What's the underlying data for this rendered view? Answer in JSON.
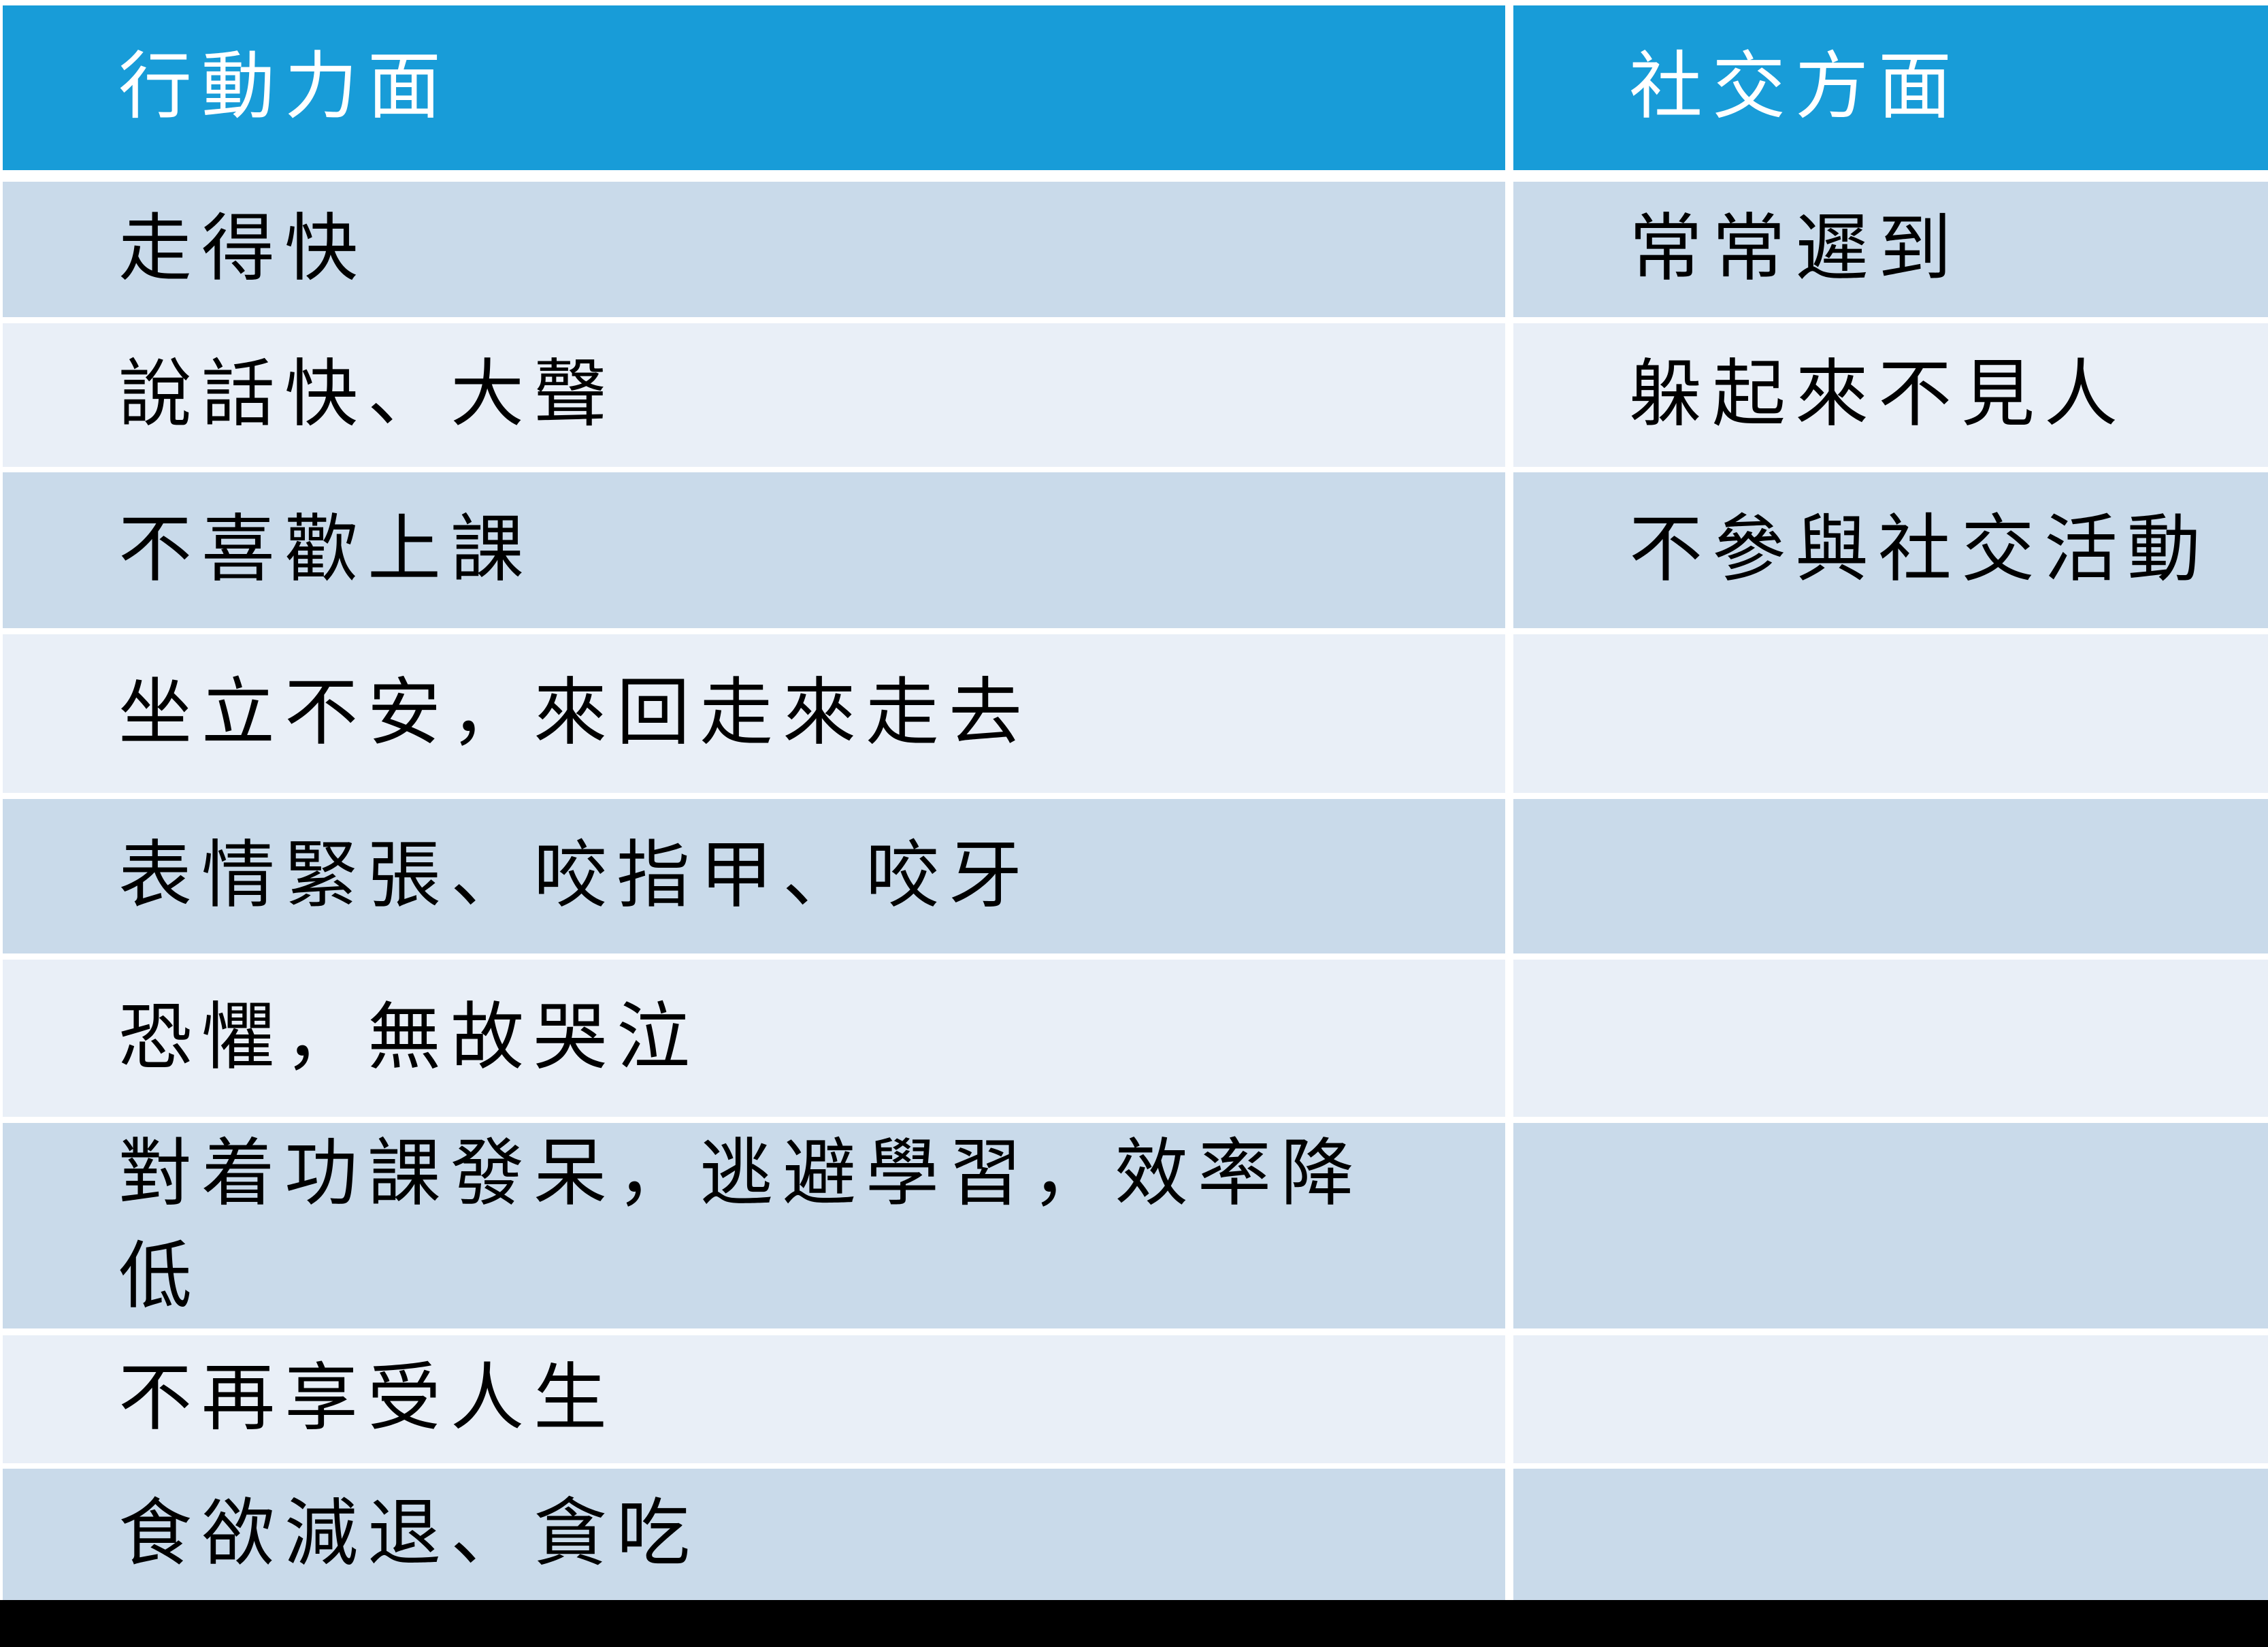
{
  "table": {
    "columns": [
      {
        "label": "行動力面"
      },
      {
        "label": "社交方面"
      }
    ],
    "rows": [
      {
        "action": "走得快",
        "social": "常常遲到"
      },
      {
        "action": "說話快、大聲",
        "social": "躲起來不見人"
      },
      {
        "action": "不喜歡上課",
        "social": "不參與社交活動"
      },
      {
        "action": "坐立不安，來回走來走去",
        "social": ""
      },
      {
        "action": "表情緊張、咬指甲、咬牙",
        "social": ""
      },
      {
        "action": "恐懼，無故哭泣",
        "social": ""
      },
      {
        "action": "對着功課發呆，逃避學習，效率降\n低",
        "social": ""
      },
      {
        "action": "不再享受人生",
        "social": ""
      },
      {
        "action": "食欲減退、貪吃",
        "social": ""
      }
    ],
    "colors": {
      "header_bg": "#189CD8",
      "header_text": "#FFFFFF",
      "row_dark_bg": "#C9DAEA",
      "row_light_bg": "#E9EFF7",
      "body_text": "#000000",
      "divider": "#FFFFFF",
      "bottom_bar": "#000000"
    }
  }
}
